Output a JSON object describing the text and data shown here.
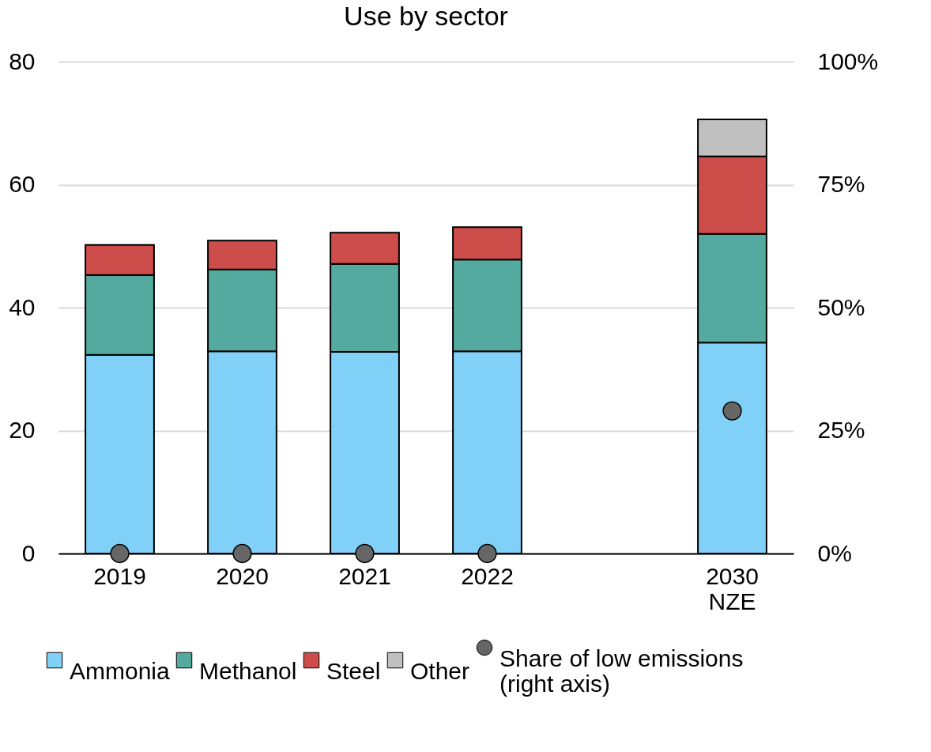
{
  "chart_data": {
    "type": "bar",
    "title": "Use by sector",
    "categories": [
      "2019",
      "2020",
      "2021",
      "2022",
      null,
      "2030\nNZE"
    ],
    "stacked": true,
    "series": [
      {
        "name": "Ammonia",
        "color": "#80d0f8",
        "values": [
          32.3,
          32.9,
          32.8,
          32.9,
          null,
          34.3
        ]
      },
      {
        "name": "Methanol",
        "color": "#55aa9f",
        "values": [
          13.0,
          13.3,
          14.3,
          14.9,
          null,
          17.7
        ]
      },
      {
        "name": "Steel",
        "color": "#cd4d4b",
        "values": [
          4.9,
          4.7,
          5.1,
          5.3,
          null,
          12.6
        ]
      },
      {
        "name": "Other",
        "color": "#c0c0c0",
        "values": [
          null,
          null,
          null,
          null,
          null,
          6.0
        ]
      },
      {
        "name": "Share of low emissions\n(right axis)",
        "type": "scatter",
        "axis": "y2",
        "color": "#666666",
        "values": [
          0,
          0,
          0,
          0,
          null,
          29
        ]
      }
    ],
    "ylim": [
      0,
      80
    ],
    "yticks": [
      0,
      20,
      40,
      60,
      80
    ],
    "y2lim": [
      0,
      100
    ],
    "y2ticks": [
      {
        "value": 0,
        "label": "0%"
      },
      {
        "value": 25,
        "label": "25%"
      },
      {
        "value": 50,
        "label": "50%"
      },
      {
        "value": 75,
        "label": "75%"
      },
      {
        "value": 100,
        "label": "100%"
      }
    ],
    "grid": "y",
    "legend": "bottom",
    "marker": "circle"
  }
}
